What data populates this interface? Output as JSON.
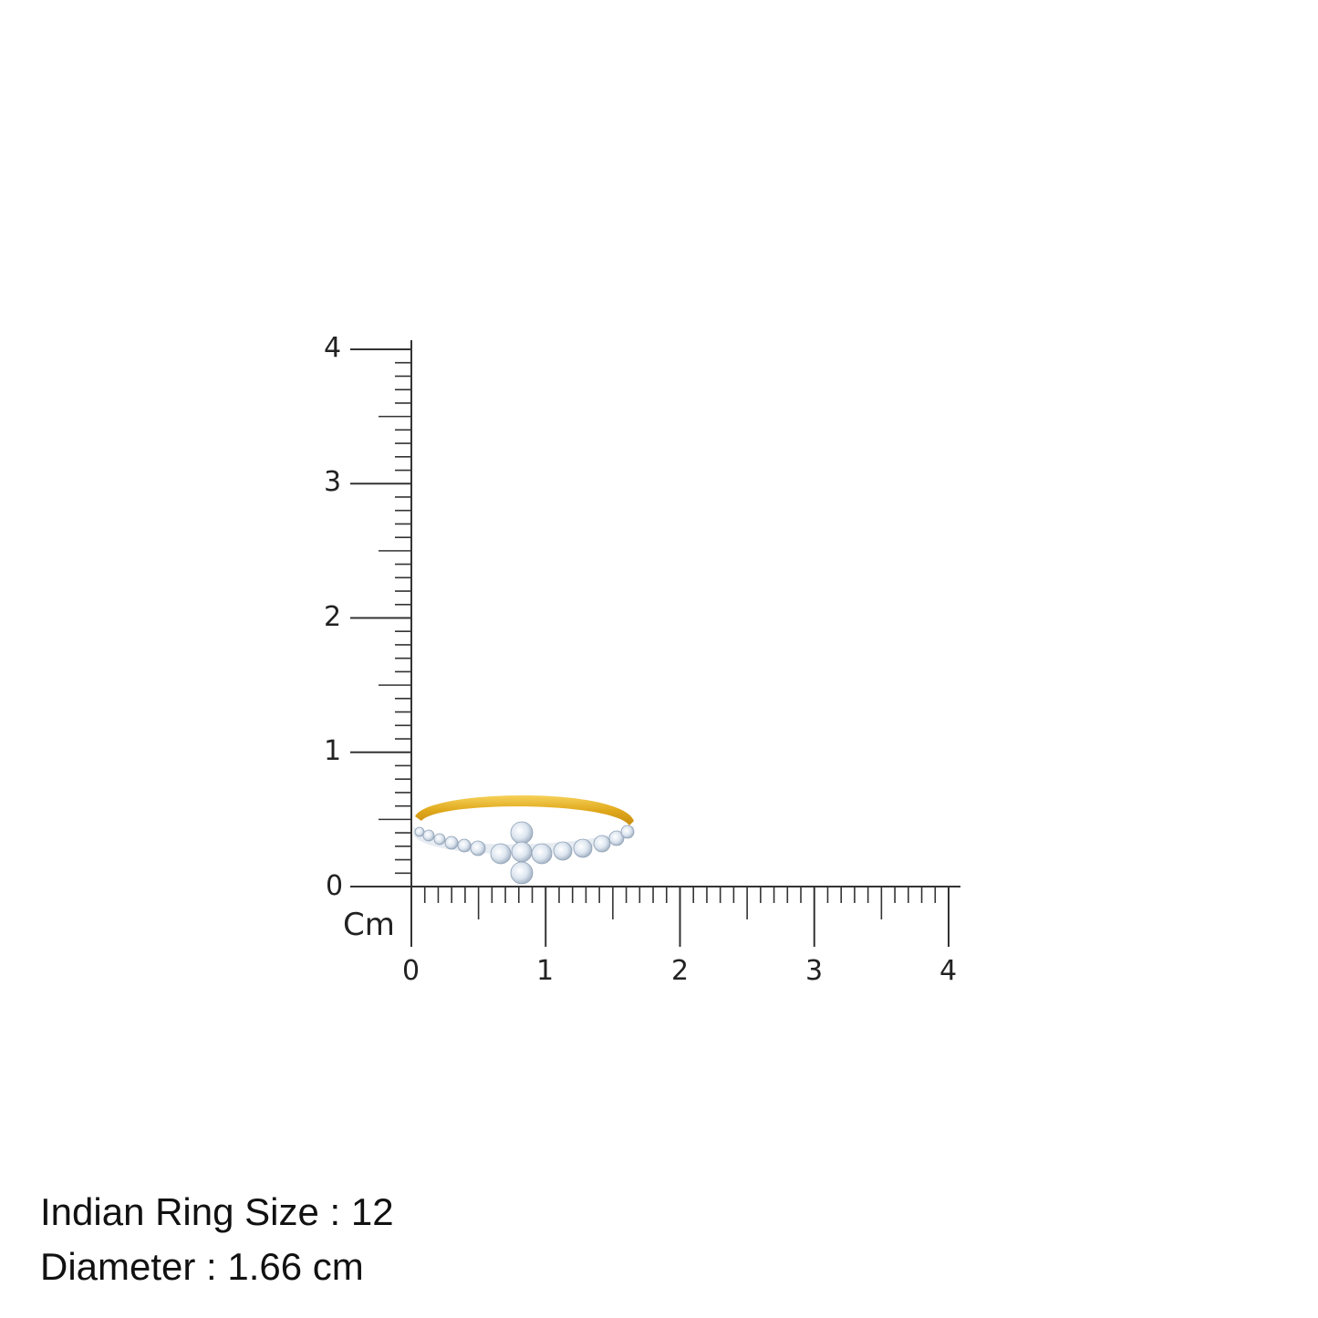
{
  "ruler": {
    "unit_label": "Cm",
    "y_ticks": [
      "0",
      "1",
      "2",
      "3",
      "4"
    ],
    "x_ticks": [
      "0",
      "1",
      "2",
      "3",
      "4"
    ],
    "range_cm": [
      0,
      4
    ],
    "minor_step_cm": 0.1
  },
  "product": {
    "ring_size_line": "Indian Ring Size : 12",
    "diameter_line": "Diameter : 1.66 cm"
  },
  "colors": {
    "gold": "#e8b923",
    "diamond": "#dfe8f2",
    "ruler": "#333333"
  }
}
